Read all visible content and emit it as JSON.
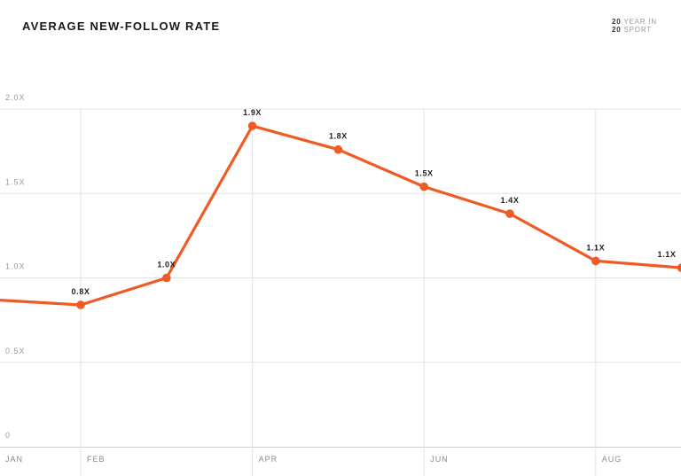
{
  "header": {
    "title": "AVERAGE NEW-FOLLOW RATE",
    "brand_line1_num": "20",
    "brand_line1_text": "YEAR IN",
    "brand_line2_num": "20",
    "brand_line2_text": "SPORT"
  },
  "colors": {
    "line": "#f05a24",
    "grid": "#e3e3e3",
    "axis_text": "#9a9a9a",
    "label_text": "#222222"
  },
  "chart_data": {
    "type": "line",
    "title": "AVERAGE NEW-FOLLOW RATE",
    "xlabel": "",
    "ylabel": "",
    "x_tick_labels": [
      "JAN",
      "FEB",
      "APR",
      "JUN",
      "AUG"
    ],
    "y_tick_labels": [
      "0",
      "0.5X",
      "1.0X",
      "1.5X",
      "2.0X"
    ],
    "y_ticks": [
      0,
      0.5,
      1.0,
      1.5,
      2.0
    ],
    "ylim": [
      0,
      2.0
    ],
    "grid": true,
    "series": [
      {
        "points": [
          {
            "month": 1,
            "value": 0.87
          },
          {
            "month": 2,
            "value": 0.84,
            "label": "0.8X"
          },
          {
            "month": 3,
            "value": 1.0,
            "label": "1.0X"
          },
          {
            "month": 4,
            "value": 1.9,
            "label": "1.9X"
          },
          {
            "month": 5,
            "value": 1.76,
            "label": "1.8X"
          },
          {
            "month": 6,
            "value": 1.54,
            "label": "1.5X"
          },
          {
            "month": 7,
            "value": 1.38,
            "label": "1.4X"
          },
          {
            "month": 8,
            "value": 1.1,
            "label": "1.1X"
          },
          {
            "month": 9,
            "value": 1.06,
            "label": "1.1X"
          }
        ]
      }
    ]
  }
}
